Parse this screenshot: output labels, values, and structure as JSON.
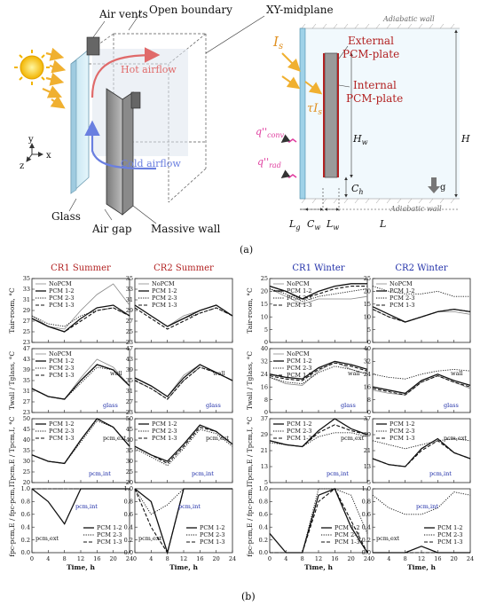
{
  "diagram_a": {
    "labels": {
      "air_vents": "Air vents",
      "open_boundary": "Open boundary",
      "xy_midplane": "XY-midplane",
      "hot_airflow": "Hot airflow",
      "cold_airflow": "Cold airflow",
      "glass": "Glass",
      "air_gap": "Air gap",
      "massive_wall": "Massive wall",
      "axis_x": "x",
      "axis_y": "y",
      "axis_z": "z"
    },
    "schematic": {
      "adiabatic_top": "Adiabatic wall",
      "adiabatic_bottom": "Adiabatic wall",
      "is": "I",
      "is_sub": "s",
      "tau_is": "τI",
      "tau_sub": "s",
      "external_pcm_line1": "External",
      "external_pcm_line2": "PCM-plate",
      "internal_pcm_line1": "Internal",
      "internal_pcm_line2": "PCM-plate",
      "q_conv": "q''",
      "q_conv_sub": "conv",
      "q_rad": "q''",
      "q_rad_sub": "rad",
      "hw": "H",
      "hw_sub": "w",
      "h": "H",
      "ch": "C",
      "ch_sub": "h",
      "g": "g",
      "lg": "L",
      "lg_sub": "g",
      "cw": "C",
      "cw_sub": "w",
      "lw": "L",
      "lw_sub": "w",
      "l": "L"
    },
    "panel_label": "(a)"
  },
  "figure_b": {
    "panel_label": "(b)",
    "column_titles": [
      "CR1 Summer",
      "CR2 Summer",
      "CR1 Winter",
      "CR2 Winter"
    ],
    "column_colors": [
      "#b22222",
      "#b22222",
      "#1f2ea8",
      "#1f2ea8"
    ],
    "row_ylabels": [
      {
        "text": "Tair-room, °C"
      },
      {
        "text": "Twall / Tglass, °C"
      },
      {
        "text": "Tpcm,E / Tpcm,I, °C"
      },
      {
        "text": "fpc-pcm,E / fpc-pcm,I"
      }
    ],
    "xlabel": "Time, h",
    "xticks": [
      "0",
      "4",
      "8",
      "12",
      "16",
      "20",
      "24"
    ],
    "yticks_summer": [
      [
        "35",
        "33",
        "31",
        "29",
        "27",
        "25",
        "23"
      ],
      [
        "47",
        "43",
        "39",
        "35",
        "31",
        "27",
        "23"
      ],
      [
        "50",
        "45",
        "40",
        "35",
        "30",
        "25",
        "20"
      ],
      [
        "1.0",
        "0.8",
        "0.6",
        "0.4",
        "0.2",
        "0.0"
      ]
    ],
    "yticks_winter": [
      [
        "25",
        "20",
        "15",
        "10",
        "5",
        "0"
      ],
      [
        "40",
        "32",
        "24",
        "16",
        "8",
        "0"
      ],
      [
        "37",
        "29",
        "21",
        "13",
        "5"
      ],
      [
        "1.0",
        "0.8",
        "0.6",
        "0.4",
        "0.2",
        "0.0"
      ]
    ],
    "legend_4": [
      "NoPCM",
      "PCM 1-2",
      "PCM 2-3",
      "PCM 1-3"
    ],
    "legend_3": [
      "PCM 1-2",
      "PCM 2-3",
      "PCM 1-3"
    ],
    "annotations": {
      "wall": "wall",
      "glass": "glass",
      "pcm_ext": "pcm,ext",
      "pcm_int": "pcm,int"
    }
  },
  "chart_data": [
    {
      "type": "line",
      "title": "CR1 Summer",
      "ylabel": "Tair-room, °C",
      "ylim": [
        23,
        35
      ],
      "x": [
        0,
        4,
        8,
        12,
        16,
        20,
        24
      ],
      "series": [
        {
          "name": "NoPCM",
          "values": [
            28,
            26,
            25.5,
            29,
            32,
            34,
            30
          ]
        },
        {
          "name": "PCM 1-2",
          "values": [
            27.5,
            26,
            25,
            27.5,
            29.5,
            30,
            28
          ]
        },
        {
          "name": "PCM 2-3",
          "values": [
            28,
            26.5,
            26,
            28,
            29,
            29.5,
            28
          ]
        },
        {
          "name": "PCM 1-3",
          "values": [
            27.5,
            26,
            25,
            27,
            29,
            29.5,
            28
          ]
        }
      ]
    },
    {
      "type": "line",
      "title": "CR2 Summer",
      "ylabel": "Tair-room, °C",
      "ylim": [
        23,
        35
      ],
      "x": [
        0,
        4,
        8,
        12,
        16,
        20,
        24
      ],
      "series": [
        {
          "name": "NoPCM",
          "values": [
            30,
            28,
            26,
            28,
            29,
            30,
            28
          ]
        },
        {
          "name": "PCM 1-2",
          "values": [
            30,
            28,
            26,
            27.5,
            29,
            30,
            28
          ]
        },
        {
          "name": "PCM 2-3",
          "values": [
            30,
            28,
            26,
            27.5,
            28.5,
            29.5,
            28
          ]
        },
        {
          "name": "PCM 1-3",
          "values": [
            29.5,
            27.5,
            25.5,
            27,
            28.5,
            29.5,
            28
          ]
        }
      ]
    },
    {
      "type": "line",
      "title": "CR1 Winter",
      "ylabel": "Tair-room, °C",
      "ylim": [
        0,
        25
      ],
      "x": [
        0,
        4,
        8,
        12,
        16,
        20,
        24
      ],
      "series": [
        {
          "name": "NoPCM",
          "values": [
            21,
            18,
            15,
            17,
            17,
            17,
            18
          ]
        },
        {
          "name": "PCM 1-2",
          "values": [
            22,
            20,
            17,
            20,
            22,
            23,
            23
          ]
        },
        {
          "name": "PCM 2-3",
          "values": [
            21,
            19,
            16,
            18,
            19,
            20,
            21
          ]
        },
        {
          "name": "PCM 1-3",
          "values": [
            22,
            20,
            17,
            19,
            21,
            22,
            22
          ]
        }
      ]
    },
    {
      "type": "line",
      "title": "CR2 Winter",
      "ylabel": "Tair-room, °C",
      "ylim": [
        0,
        25
      ],
      "x": [
        0,
        4,
        8,
        12,
        16,
        20,
        24
      ],
      "series": [
        {
          "name": "NoPCM",
          "values": [
            13,
            10,
            8,
            10,
            12,
            12,
            11
          ]
        },
        {
          "name": "PCM 1-2",
          "values": [
            14,
            11,
            8,
            10,
            12,
            13,
            12
          ]
        },
        {
          "name": "PCM 2-3",
          "values": [
            22,
            20,
            19,
            19,
            20,
            18,
            18
          ]
        },
        {
          "name": "PCM 1-3",
          "values": [
            13,
            10,
            8,
            10,
            12,
            13,
            12
          ]
        }
      ]
    },
    {
      "type": "line",
      "title": "CR1 Summer",
      "ylabel": "Twall / Tglass, °C",
      "ylim": [
        23,
        47
      ],
      "x": [
        0,
        4,
        8,
        12,
        16,
        20,
        24
      ],
      "series": [
        {
          "name": "NoPCM",
          "values": [
            32,
            29,
            28,
            36,
            43,
            40,
            33
          ]
        },
        {
          "name": "PCM 1-2",
          "values": [
            32,
            29,
            28,
            35,
            41,
            39,
            33
          ]
        },
        {
          "name": "PCM 2-3",
          "values": [
            32,
            29,
            28,
            34,
            40,
            39,
            33
          ]
        },
        {
          "name": "PCM 1-3",
          "values": [
            32,
            29,
            28,
            35,
            41,
            39,
            33
          ]
        }
      ]
    },
    {
      "type": "line",
      "title": "CR2 Summer",
      "ylabel": "Twall / Tglass, °C",
      "ylim": [
        23,
        47
      ],
      "x": [
        0,
        4,
        8,
        12,
        16,
        20,
        24
      ],
      "series": [
        {
          "name": "NoPCM",
          "values": [
            36,
            33,
            29,
            37,
            41,
            38,
            35
          ]
        },
        {
          "name": "PCM 1-2",
          "values": [
            36,
            33,
            29,
            36,
            41,
            38,
            35
          ]
        },
        {
          "name": "PCM 2-3",
          "values": [
            35,
            32,
            28,
            35,
            40,
            38,
            35
          ]
        },
        {
          "name": "PCM 1-3",
          "values": [
            35,
            32,
            28,
            35,
            40,
            38,
            35
          ]
        }
      ]
    },
    {
      "type": "line",
      "title": "CR1 Winter",
      "ylabel": "Twall / Tglass, °C",
      "ylim": [
        0,
        40
      ],
      "x": [
        0,
        4,
        8,
        12,
        16,
        20,
        24
      ],
      "series": [
        {
          "name": "NoPCM",
          "values": [
            22,
            18,
            17,
            26,
            32,
            27,
            24
          ]
        },
        {
          "name": "PCM 1-2",
          "values": [
            24,
            22,
            21,
            28,
            32,
            30,
            27
          ]
        },
        {
          "name": "PCM 2-3",
          "values": [
            22,
            19,
            18,
            25,
            29,
            27,
            24
          ]
        },
        {
          "name": "PCM 1-3",
          "values": [
            23,
            21,
            20,
            27,
            31,
            29,
            26
          ]
        }
      ]
    },
    {
      "type": "line",
      "title": "CR2 Winter",
      "ylabel": "Twall / Tglass, °C",
      "ylim": [
        0,
        40
      ],
      "x": [
        0,
        4,
        8,
        12,
        16,
        20,
        24
      ],
      "series": [
        {
          "name": "NoPCM",
          "values": [
            14,
            12,
            11,
            19,
            23,
            19,
            15
          ]
        },
        {
          "name": "PCM 1-2",
          "values": [
            16,
            14,
            12,
            20,
            24,
            20,
            17
          ]
        },
        {
          "name": "PCM 2-3",
          "values": [
            24,
            22,
            21,
            24,
            26,
            27,
            26
          ]
        },
        {
          "name": "PCM 1-3",
          "values": [
            15,
            13,
            11,
            19,
            23,
            19,
            16
          ]
        }
      ]
    },
    {
      "type": "line",
      "title": "CR1 Summer",
      "ylabel": "Tpcm,E / Tpcm,I, °C",
      "ylim": [
        20,
        50
      ],
      "x": [
        0,
        4,
        8,
        12,
        16,
        20,
        24
      ],
      "series": [
        {
          "name": "PCM 1-2",
          "values": [
            33,
            30,
            29,
            40,
            50,
            46,
            37
          ]
        },
        {
          "name": "PCM 2-3",
          "values": [
            33,
            30,
            29,
            39,
            49,
            46,
            37
          ]
        },
        {
          "name": "PCM 1-3",
          "values": [
            33,
            30,
            29,
            40,
            50,
            46,
            37
          ]
        }
      ]
    },
    {
      "type": "line",
      "title": "CR2 Summer",
      "ylabel": "Tpcm,E / Tpcm,I, °C",
      "ylim": [
        20,
        50
      ],
      "x": [
        0,
        4,
        8,
        12,
        16,
        20,
        24
      ],
      "series": [
        {
          "name": "PCM 1-2",
          "values": [
            37,
            33,
            30,
            38,
            47,
            44,
            38
          ]
        },
        {
          "name": "PCM 2-3",
          "values": [
            36,
            32,
            28,
            36,
            45,
            43,
            37
          ]
        },
        {
          "name": "PCM 1-3",
          "values": [
            37,
            33,
            29,
            37,
            46,
            44,
            38
          ]
        }
      ]
    },
    {
      "type": "line",
      "title": "CR1 Winter",
      "ylabel": "Tpcm,E / Tpcm,I, °C",
      "ylim": [
        5,
        37
      ],
      "x": [
        0,
        4,
        8,
        12,
        16,
        20,
        24
      ],
      "series": [
        {
          "name": "PCM 1-2",
          "values": [
            26,
            24,
            23,
            31,
            37,
            32,
            29
          ]
        },
        {
          "name": "PCM 2-3",
          "values": [
            25,
            24,
            23,
            28,
            30,
            30,
            28
          ]
        },
        {
          "name": "PCM 1-3",
          "values": [
            26,
            24,
            23,
            30,
            34,
            31,
            29
          ]
        }
      ]
    },
    {
      "type": "line",
      "title": "CR2 Winter",
      "ylabel": "Tpcm,E / Tpcm,I, °C",
      "ylim": [
        5,
        37
      ],
      "x": [
        0,
        4,
        8,
        12,
        16,
        20,
        24
      ],
      "series": [
        {
          "name": "PCM 1-2",
          "values": [
            17,
            14,
            13,
            22,
            27,
            20,
            17
          ]
        },
        {
          "name": "PCM 2-3",
          "values": [
            26,
            24,
            22,
            24,
            26,
            27,
            26
          ]
        },
        {
          "name": "PCM 1-3",
          "values": [
            17,
            14,
            13,
            21,
            26,
            20,
            17
          ]
        }
      ]
    },
    {
      "type": "line",
      "title": "CR1 Summer",
      "ylabel": "fpc-pcm,E / fpc-pcm,I",
      "ylim": [
        0,
        1
      ],
      "x": [
        0,
        4,
        8,
        12,
        16,
        20,
        24
      ],
      "series": [
        {
          "name": "PCM 1-2",
          "values": [
            1.0,
            0.8,
            0.45,
            1.0,
            1.0,
            1.0,
            1.0
          ]
        },
        {
          "name": "PCM 2-3",
          "values": [
            1.0,
            1.0,
            1.0,
            1.0,
            1.0,
            1.0,
            1.0
          ]
        },
        {
          "name": "PCM 1-3",
          "values": [
            1.0,
            1.0,
            1.0,
            1.0,
            1.0,
            1.0,
            1.0
          ]
        }
      ]
    },
    {
      "type": "line",
      "title": "CR2 Summer",
      "ylabel": "fpc-pcm,E / fpc-pcm,I",
      "ylim": [
        0,
        1
      ],
      "x": [
        0,
        4,
        8,
        12,
        16,
        20,
        24
      ],
      "series": [
        {
          "name": "PCM 1-2",
          "values": [
            1.0,
            0.8,
            0.0,
            1.0,
            1.0,
            1.0,
            1.0
          ]
        },
        {
          "name": "PCM 2-3",
          "values": [
            1.0,
            0.6,
            0.75,
            1.0,
            1.0,
            1.0,
            1.0
          ]
        },
        {
          "name": "PCM 1-3",
          "values": [
            1.0,
            0.4,
            0.0,
            1.0,
            1.0,
            1.0,
            1.0
          ]
        }
      ]
    },
    {
      "type": "line",
      "title": "CR1 Winter",
      "ylabel": "fpc-pcm,E / fpc-pcm,I",
      "ylim": [
        0,
        1
      ],
      "x": [
        0,
        4,
        8,
        12,
        16,
        20,
        24
      ],
      "series": [
        {
          "name": "PCM 1-2",
          "values": [
            0.3,
            0.0,
            0.0,
            0.9,
            1.0,
            0.4,
            0.0
          ]
        },
        {
          "name": "PCM 2-3",
          "values": [
            0.0,
            0.0,
            0.0,
            1.0,
            1.0,
            0.9,
            0.3
          ]
        },
        {
          "name": "PCM 1-3",
          "values": [
            0.0,
            0.0,
            0.0,
            0.8,
            1.0,
            0.5,
            0.0
          ]
        }
      ]
    },
    {
      "type": "line",
      "title": "CR2 Winter",
      "ylabel": "fpc-pcm,E / fpc-pcm,I",
      "ylim": [
        0,
        1
      ],
      "x": [
        0,
        4,
        8,
        12,
        16,
        20,
        24
      ],
      "series": [
        {
          "name": "PCM 1-2",
          "values": [
            0.0,
            0.0,
            0.0,
            0.1,
            0.0,
            0.0,
            0.0
          ]
        },
        {
          "name": "PCM 2-3",
          "values": [
            0.9,
            0.7,
            0.6,
            0.6,
            0.7,
            0.95,
            0.9
          ]
        },
        {
          "name": "PCM 1-3",
          "values": [
            0.0,
            0.0,
            0.0,
            0.0,
            0.0,
            0.0,
            0.0
          ]
        }
      ]
    }
  ]
}
